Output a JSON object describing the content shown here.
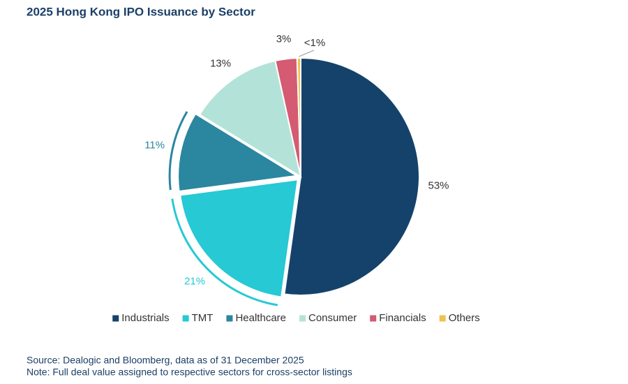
{
  "chart_data": {
    "type": "pie",
    "title": "2025 Hong Kong IPO Issuance by Sector",
    "categories": [
      "Industrials",
      "TMT",
      "Healthcare",
      "Consumer",
      "Financials",
      "Others"
    ],
    "values": [
      53,
      21,
      11,
      13,
      3,
      0.5
    ],
    "value_labels": [
      "53%",
      "21%",
      "11%",
      "13%",
      "3%",
      "<1%"
    ],
    "colors": [
      "#15426b",
      "#26c9d4",
      "#2b86a0",
      "#b3e3d8",
      "#d45b72",
      "#f2c14e"
    ],
    "legend": "bottom",
    "notes": [
      "Source: Dealogic and Bloomberg, data as of 31 December 2025",
      "Note: Full deal value assigned to respective sectors for cross-sector listings"
    ]
  }
}
